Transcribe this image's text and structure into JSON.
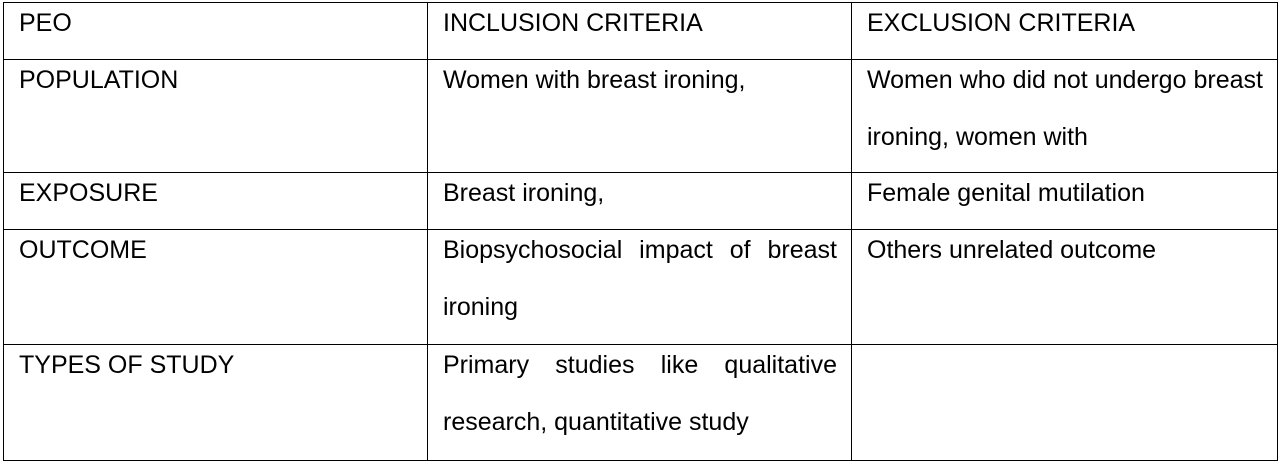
{
  "table": {
    "header": {
      "col1": "PEO",
      "col2": "INCLUSION CRITERIA",
      "col3": "EXCLUSION CRITERIA"
    },
    "rows": [
      {
        "label": "POPULATION",
        "inclusion": "Women with breast ironing,",
        "exclusion": "Women who did not undergo breast ironing, women with"
      },
      {
        "label": "EXPOSURE",
        "inclusion": "Breast ironing,",
        "exclusion": "Female genital mutilation"
      },
      {
        "label": "OUTCOME",
        "inclusion": "Biopsychosocial impact of breast ironing",
        "exclusion": "Others unrelated outcome"
      },
      {
        "label": "TYPES OF STUDY",
        "inclusion": "Primary studies like qualitative research, quantitative study",
        "exclusion": ""
      }
    ]
  }
}
